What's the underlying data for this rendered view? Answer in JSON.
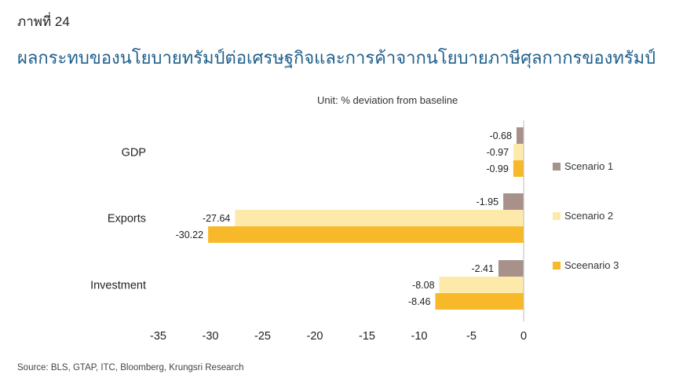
{
  "figure_label": "ภาพที่ 24",
  "title": "ผลกระทบของนโยบายทรัมป์ต่อเศรษฐกิจและการค้าจากนโยบายภาษีศุลกากรของทรัมป์",
  "source": "Source: BLS, GTAP, ITC, Bloomberg, Krungsri Research",
  "colors": {
    "scenario1": "#a8918a",
    "scenario2": "#fde9a9",
    "scenario3": "#f7b92a",
    "axis": "#bbbbbb",
    "text": "#222222"
  },
  "chart_data": {
    "type": "bar",
    "orientation": "horizontal",
    "unit_label": "Unit: % deviation from baseline",
    "categories": [
      "GDP",
      "Exports",
      "Investment"
    ],
    "series": [
      {
        "name": "Scenario 1",
        "values": [
          -0.68,
          -1.95,
          -2.41
        ]
      },
      {
        "name": "Scenario 2",
        "values": [
          -0.97,
          -27.64,
          -8.08
        ]
      },
      {
        "name": "Sceenario 3",
        "values": [
          -0.99,
          -30.22,
          -8.46
        ]
      }
    ],
    "value_labels": [
      [
        "-0.68",
        "-1.95",
        "-2.41"
      ],
      [
        "-0.97",
        "-27.64",
        "-8.08"
      ],
      [
        "-0.99",
        "-30.22",
        "-8.46"
      ]
    ],
    "xlim": [
      -35,
      0
    ],
    "xticks": [
      "-35",
      "-30",
      "-25",
      "-20",
      "-15",
      "-10",
      "-5",
      "0"
    ],
    "legend_position": "right",
    "grid": false
  }
}
